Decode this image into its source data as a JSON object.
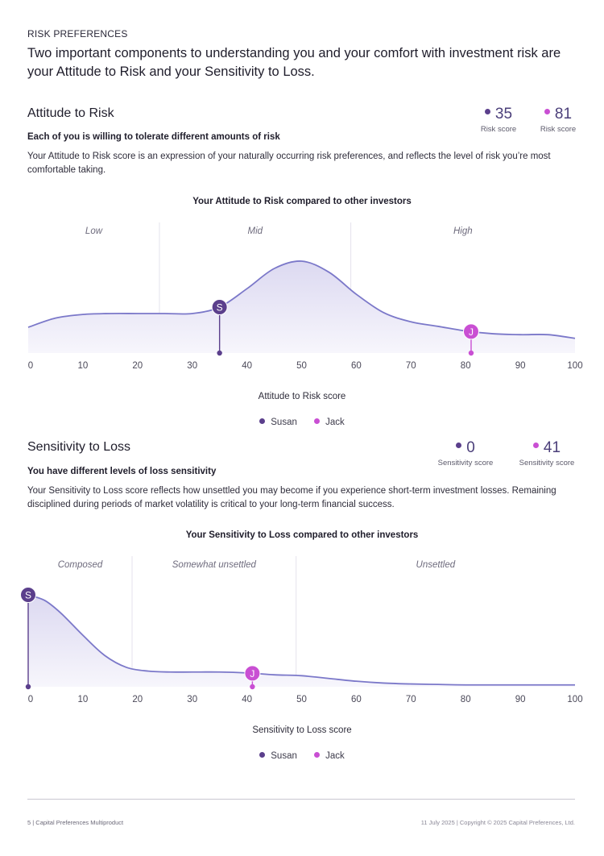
{
  "page": {
    "eyebrow": "RISK PREFERENCES",
    "headline": "Two important components to understanding you and your comfort with investment risk are your Attitude to Risk and your Sensitivity to Loss."
  },
  "colors": {
    "susan": "#5b3f8c",
    "jack": "#c94fd3",
    "curve": "#7b78c9",
    "fill": "#e7e5f5",
    "divider": "#e4e2ec"
  },
  "attitude": {
    "title": "Attitude to Risk",
    "subtitle": "Each of you is willing to tolerate different amounts of risk",
    "body": "Your Attitude to Risk score is an expression of your naturally occurring risk preferences, and reflects the level of risk you’re most comfortable taking.",
    "scores": [
      {
        "person": "susan",
        "value": "35",
        "label": "Risk score"
      },
      {
        "person": "jack",
        "value": "81",
        "label": "Risk score"
      }
    ]
  },
  "sensitivity": {
    "title": "Sensitivity to Loss",
    "subtitle": "You have different levels of loss sensitivity",
    "body": "Your Sensitivity to Loss score reflects how unsettled you may become if you experience short-term investment losses. Remaining disciplined during periods of market volatility is critical to your long-term financial success.",
    "scores": [
      {
        "person": "susan",
        "value": "0",
        "label": "Sensitivity score"
      },
      {
        "person": "jack",
        "value": "41",
        "label": "Sensitivity score"
      }
    ]
  },
  "chart_data": [
    {
      "type": "area",
      "title": "Your Attitude to Risk compared to other investors",
      "xlabel": "Attitude to Risk score",
      "ylabel": "",
      "xlim": [
        0,
        100
      ],
      "ylim": [
        0,
        10
      ],
      "xticks": [
        "0",
        "10",
        "20",
        "30",
        "40",
        "50",
        "60",
        "70",
        "80",
        "90",
        "100"
      ],
      "bands": [
        {
          "label": "Low",
          "from": 0,
          "to": 24
        },
        {
          "label": "Mid",
          "from": 24,
          "to": 59
        },
        {
          "label": "High",
          "from": 59,
          "to": 100
        }
      ],
      "curve": {
        "x": [
          0,
          5,
          10,
          15,
          20,
          25,
          30,
          35,
          40,
          45,
          50,
          55,
          60,
          65,
          70,
          75,
          80,
          85,
          90,
          95,
          100
        ],
        "y": [
          2.8,
          3.8,
          4.2,
          4.3,
          4.3,
          4.3,
          4.3,
          5.0,
          7.0,
          9.2,
          10.0,
          8.8,
          6.4,
          4.4,
          3.4,
          2.9,
          2.4,
          2.1,
          2.0,
          2.0,
          1.6
        ]
      },
      "markers": [
        {
          "person": "susan",
          "initial": "S",
          "x": 35
        },
        {
          "person": "jack",
          "initial": "J",
          "x": 81
        }
      ],
      "legend": [
        {
          "person": "susan",
          "label": "Susan"
        },
        {
          "person": "jack",
          "label": "Jack"
        }
      ]
    },
    {
      "type": "area",
      "title": "Your Sensitivity to Loss compared to other investors",
      "xlabel": "Sensitivity to Loss score",
      "ylabel": "",
      "xlim": [
        0,
        100
      ],
      "ylim": [
        0,
        10
      ],
      "xticks": [
        "0",
        "10",
        "20",
        "30",
        "40",
        "50",
        "60",
        "70",
        "80",
        "90",
        "100"
      ],
      "bands": [
        {
          "label": "Composed",
          "from": 0,
          "to": 19
        },
        {
          "label": "Somewhat unsettled",
          "from": 19,
          "to": 49
        },
        {
          "label": "Unsettled",
          "from": 49,
          "to": 100
        }
      ],
      "curve": {
        "x": [
          0,
          3,
          6,
          10,
          14,
          18,
          22,
          26,
          30,
          35,
          40,
          45,
          50,
          55,
          60,
          65,
          70,
          75,
          80,
          90,
          100
        ],
        "y": [
          10.0,
          9.4,
          8.0,
          5.6,
          3.4,
          2.1,
          1.7,
          1.6,
          1.6,
          1.6,
          1.5,
          1.3,
          1.2,
          0.9,
          0.6,
          0.4,
          0.3,
          0.25,
          0.2,
          0.2,
          0.2
        ]
      },
      "markers": [
        {
          "person": "susan",
          "initial": "S",
          "x": 0
        },
        {
          "person": "jack",
          "initial": "J",
          "x": 41
        }
      ],
      "legend": [
        {
          "person": "susan",
          "label": "Susan"
        },
        {
          "person": "jack",
          "label": "Jack"
        }
      ]
    }
  ],
  "footer": {
    "left": "5 | Capital Preferences Multiproduct",
    "right": "11 July 2025 | Copyright © 2025 Capital Preferences, Ltd."
  }
}
